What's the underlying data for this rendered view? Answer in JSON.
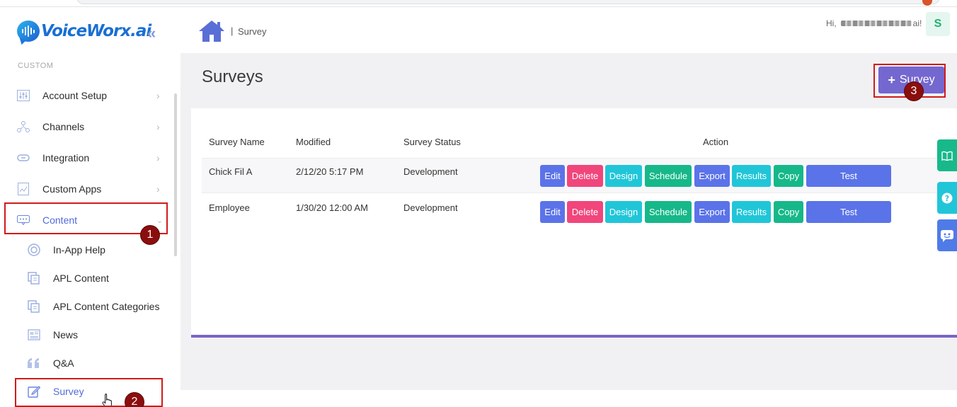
{
  "brand": {
    "name": "VoiceWorx.ai"
  },
  "sidebar": {
    "section_label": "CUSTOM",
    "items": [
      {
        "label": "Account Setup",
        "icon": "sliders-icon"
      },
      {
        "label": "Channels",
        "icon": "channels-icon"
      },
      {
        "label": "Integration",
        "icon": "link-icon"
      },
      {
        "label": "Custom Apps",
        "icon": "custom-apps-icon"
      },
      {
        "label": "Content",
        "icon": "content-icon",
        "expanded": true
      }
    ],
    "subitems": [
      {
        "label": "In-App Help",
        "icon": "help-ring-icon"
      },
      {
        "label": "APL Content",
        "icon": "copy-icon"
      },
      {
        "label": "APL Content Categories",
        "icon": "copy-icon"
      },
      {
        "label": "News",
        "icon": "news-icon"
      },
      {
        "label": "Q&A",
        "icon": "quote-icon"
      },
      {
        "label": "Survey",
        "icon": "edit-icon",
        "active": true
      }
    ]
  },
  "header": {
    "breadcrumb_sep": "|",
    "breadcrumb": "Survey",
    "greeting_prefix": "Hi,",
    "greeting_suffix": "ai!",
    "avatar_initial": "S"
  },
  "page": {
    "title": "Surveys",
    "add_button_label": "Survey"
  },
  "table": {
    "columns": [
      "Survey Name",
      "Modified",
      "Survey Status",
      "Action"
    ],
    "rows": [
      {
        "name": "Chick Fil A",
        "modified": "2/12/20 5:17 PM",
        "status": "Development"
      },
      {
        "name": "Employee",
        "modified": "1/30/20 12:00 AM",
        "status": "Development"
      }
    ],
    "actions": [
      "Edit",
      "Delete",
      "Design",
      "Schedule",
      "Export",
      "Results",
      "Copy",
      "Test"
    ]
  },
  "annotations": {
    "m1": "1",
    "m2": "2",
    "m3": "3"
  },
  "colors": {
    "accent": "#4f6bdc",
    "edit": "#5b73e8",
    "delete": "#f0467c",
    "design": "#20c6d8",
    "schedule": "#16b889",
    "export": "#5b73e8",
    "results": "#20c6d8",
    "copy": "#16b889",
    "test": "#5b73e8",
    "add_button": "#7467cf",
    "highlight": "#d11a1a"
  }
}
